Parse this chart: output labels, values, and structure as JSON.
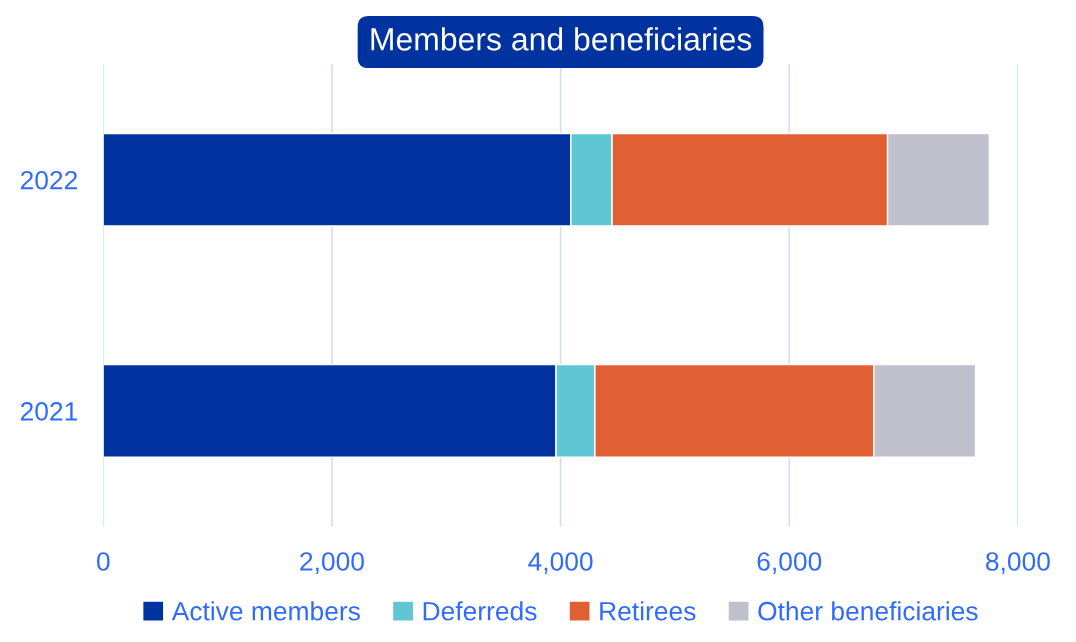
{
  "chart_data": {
    "type": "bar",
    "title": "Members and beneficiaries",
    "orientation": "horizontal",
    "stacked": true,
    "categories": [
      "2022",
      "2021"
    ],
    "series": [
      {
        "name": "Active members",
        "color": "#0033a0",
        "values": [
          4090,
          3960
        ]
      },
      {
        "name": "Deferreds",
        "color": "#5ec6d4",
        "values": [
          360,
          340
        ]
      },
      {
        "name": "Retirees",
        "color": "#e06033",
        "values": [
          2410,
          2440
        ]
      },
      {
        "name": "Other beneficiaries",
        "color": "#c0bfcc",
        "values": [
          890,
          890
        ]
      }
    ],
    "xlim": [
      0,
      8000
    ],
    "xticks": [
      {
        "value": 0,
        "label": "0"
      },
      {
        "value": 2000,
        "label": "2,000"
      },
      {
        "value": 4000,
        "label": "4,000"
      },
      {
        "value": 6000,
        "label": "6,000"
      },
      {
        "value": 8000,
        "label": "8,000"
      }
    ],
    "grid": "x",
    "legend": "bottom"
  }
}
